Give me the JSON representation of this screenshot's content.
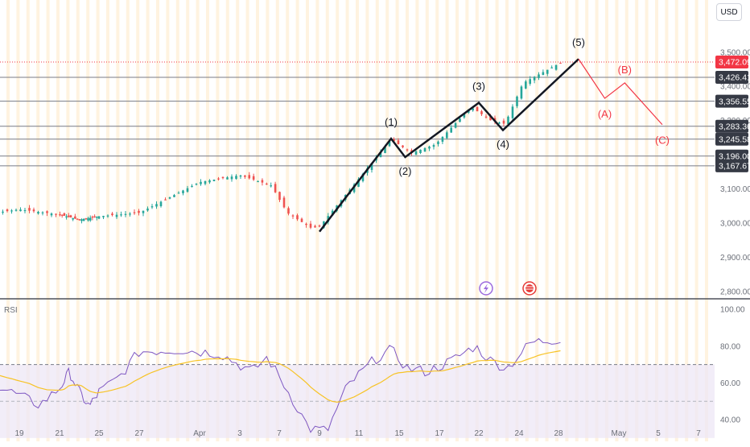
{
  "currency": "USD",
  "indicator_label": "RSI",
  "colors": {
    "up": "#26a69a",
    "down": "#ef5350",
    "wave": "#131722",
    "corrective": "#f23645",
    "rsi": "#7e57c2",
    "rsi_ma": "#f7c325",
    "hline": "#787b86"
  },
  "chart_data": {
    "type": "candlestick",
    "x_tick_labels": [
      "19",
      "21",
      "25",
      "27",
      "Apr",
      "3",
      "7",
      "9",
      "11",
      "15",
      "17",
      "22",
      "24",
      "28",
      "May",
      "5",
      "7"
    ],
    "price_axis": {
      "ticks": [
        "3,500.00",
        "3,400.00",
        "3,300.00",
        "3,100.00",
        "3,000.00",
        "2,900.00",
        "2,800.00"
      ],
      "ylim": [
        2780,
        3560
      ]
    },
    "current_price": "3,472.09",
    "horizontal_levels": [
      "3,426.41",
      "3,356.55",
      "3,283.36",
      "3,245.58",
      "3,196.00",
      "3,167.67"
    ],
    "impulse_wave": {
      "labels": [
        "(1)",
        "(2)",
        "(3)",
        "(4)",
        "(5)"
      ],
      "points": [
        [
          9,
          2975
        ],
        [
          12.6,
          3247
        ],
        [
          13.3,
          3193
        ],
        [
          17,
          3352
        ],
        [
          18.2,
          3272
        ],
        [
          22,
          3480
        ]
      ]
    },
    "corrective_wave": {
      "labels": [
        "(A)",
        "(B)",
        "(C)"
      ],
      "points": [
        [
          22,
          3480
        ],
        [
          23.3,
          3365
        ],
        [
          24.3,
          3410
        ],
        [
          26.2,
          3288
        ]
      ]
    },
    "rsi_panel": {
      "ticks": [
        "100.00",
        "80.00",
        "60.00",
        "40.00"
      ],
      "ylim": [
        33,
        104
      ],
      "overbought": 70,
      "mid": 50
    }
  }
}
